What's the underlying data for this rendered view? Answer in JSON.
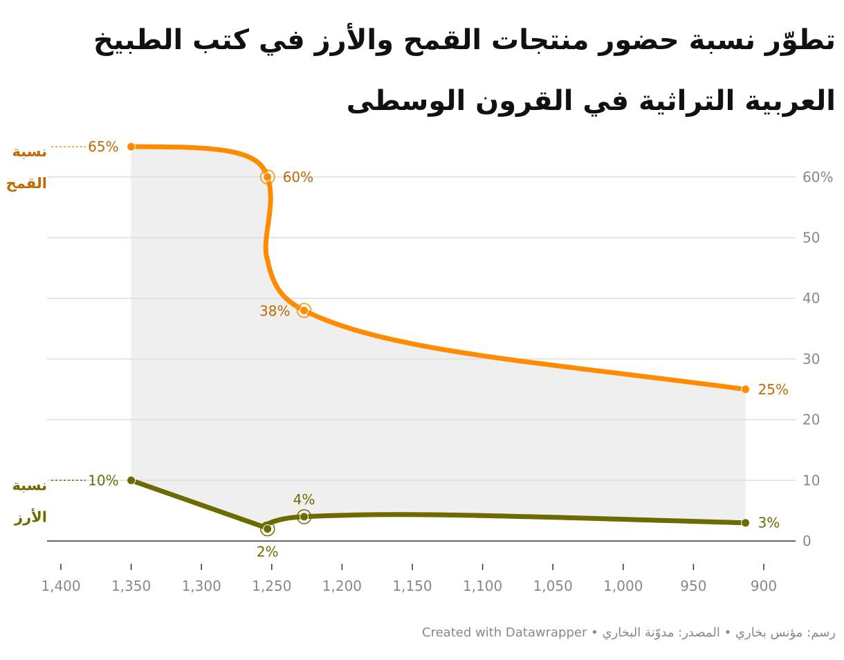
{
  "title": "تطوّر نسبة حضور منتجات القمح والأرز في كتب الطبيخ العربية التراثية في القرون الوسطى",
  "footer": {
    "credit": "رسم: مؤنس بخاري",
    "source": "المصدر: مدوّنة البخاري",
    "created_with": "Created with Datawrapper",
    "separator": "•"
  },
  "colors": {
    "wheat": "#ff8c00",
    "wheat_text": "#c06a00",
    "rice": "#6b6b00",
    "rice_text": "#6b6b00",
    "fill": "#efefef",
    "grid": "#dddddd",
    "axis": "#333333",
    "tick_text": "#888888"
  },
  "chart_data": {
    "type": "line",
    "title": "تطوّر نسبة حضور منتجات القمح والأرز في كتب الطبيخ العربية التراثية في القرون الوسطى",
    "xlabel": "",
    "ylabel": "",
    "x_reversed": true,
    "xlim": [
      1410,
      888
    ],
    "ylim": [
      0,
      65
    ],
    "x_ticks": [
      1400,
      1350,
      1300,
      1250,
      1200,
      1150,
      1100,
      1050,
      1000,
      950,
      900
    ],
    "x_tick_labels": [
      "1,400",
      "1,350",
      "1,300",
      "1,250",
      "1,200",
      "1,150",
      "1,100",
      "1,050",
      "1,000",
      "950",
      "900"
    ],
    "y_ticks": [
      0,
      10,
      20,
      30,
      40,
      50,
      60
    ],
    "y_tick_labels": [
      "0",
      "10",
      "20",
      "30",
      "40",
      "50",
      "60%"
    ],
    "grid": true,
    "shaded_between_series": true,
    "series": [
      {
        "name": "نسبة القمح",
        "name_lines": [
          "نسبة",
          "القمح"
        ],
        "color": "#ff8c00",
        "points": [
          {
            "x": 1350,
            "y": 65,
            "label": "65%"
          },
          {
            "x": 1253,
            "y": 60,
            "label": "60%"
          },
          {
            "x": 1227,
            "y": 38,
            "label": "38%"
          },
          {
            "x": 913,
            "y": 25,
            "label": "25%"
          }
        ]
      },
      {
        "name": "نسبة الأرز",
        "name_lines": [
          "نسبة",
          "الأرز"
        ],
        "color": "#6b6b00",
        "points": [
          {
            "x": 1350,
            "y": 10,
            "label": "10%"
          },
          {
            "x": 1253,
            "y": 2,
            "label": "2%"
          },
          {
            "x": 1227,
            "y": 4,
            "label": "4%"
          },
          {
            "x": 913,
            "y": 3,
            "label": "3%"
          }
        ]
      }
    ]
  }
}
